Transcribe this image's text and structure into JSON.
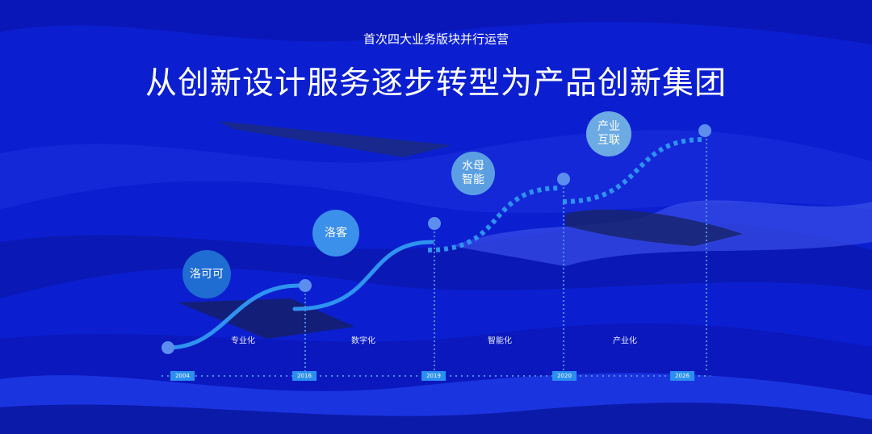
{
  "header": {
    "subtitle": "首次四大业务版块并行运营",
    "title": "从创新设计服务逐步转型为产品创新集团"
  },
  "stages": [
    {
      "name": "洛可可",
      "phase": "专业化",
      "year": "2004",
      "color": "#1f6cd2"
    },
    {
      "name": "洛客",
      "phase": "数字化",
      "year": "2016",
      "color": "#3a90ea"
    },
    {
      "name": "水母\n智能",
      "phase": "智能化",
      "year": "2019",
      "color": "#5b9fe2"
    },
    {
      "name": "产业\n互联",
      "phase": "产业化",
      "year": "2020",
      "color": "#6caae4"
    }
  ],
  "final_year": "2026",
  "colors": {
    "background": "#0b1fd0",
    "line": "#2f93f0",
    "dot": "#5c8ef0"
  }
}
